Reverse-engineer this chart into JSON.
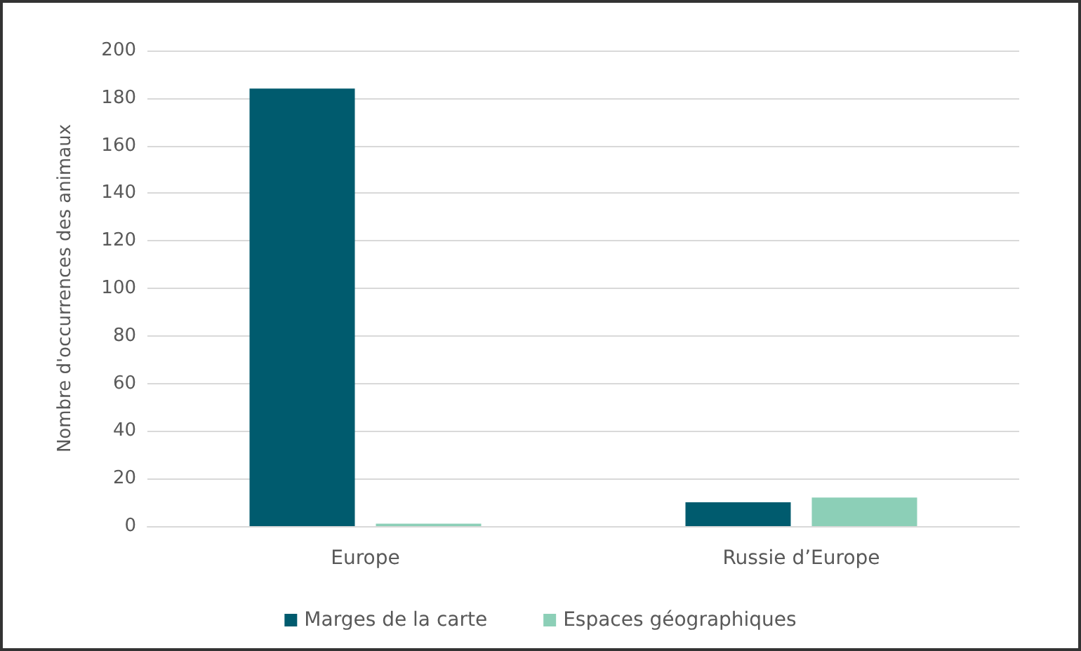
{
  "chart_data": {
    "type": "bar",
    "ylabel": "Nombre d'occurrences des animaux",
    "categories": [
      "Europe",
      "Russie d’Europe"
    ],
    "series": [
      {
        "name": "Marges de la carte",
        "color": "#005b6e",
        "values": [
          184,
          10
        ]
      },
      {
        "name": "Espaces géographiques",
        "color": "#8ccfb7",
        "values": [
          1,
          12
        ]
      }
    ],
    "ylim": [
      0,
      200
    ],
    "yticks": [
      0,
      20,
      40,
      60,
      80,
      100,
      120,
      140,
      160,
      180,
      200
    ],
    "grid": "y",
    "legend": "bottom"
  }
}
